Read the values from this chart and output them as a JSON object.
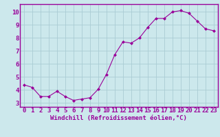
{
  "x": [
    0,
    1,
    2,
    3,
    4,
    5,
    6,
    7,
    8,
    9,
    10,
    11,
    12,
    13,
    14,
    15,
    16,
    17,
    18,
    19,
    20,
    21,
    22,
    23
  ],
  "y": [
    4.4,
    4.2,
    3.5,
    3.5,
    3.9,
    3.5,
    3.2,
    3.3,
    3.4,
    4.05,
    5.2,
    6.7,
    7.7,
    7.6,
    8.0,
    8.8,
    9.5,
    9.5,
    10.0,
    10.1,
    9.9,
    9.3,
    8.7,
    8.55
  ],
  "line_color": "#990099",
  "marker": "D",
  "marker_size": 2,
  "bg_color": "#cce8ec",
  "grid_color": "#aaccd4",
  "xlabel": "Windchill (Refroidissement éolien,°C)",
  "xlim": [
    -0.5,
    23.5
  ],
  "ylim": [
    2.7,
    10.6
  ],
  "yticks": [
    3,
    4,
    5,
    6,
    7,
    8,
    9,
    10
  ],
  "xticks": [
    0,
    1,
    2,
    3,
    4,
    5,
    6,
    7,
    8,
    9,
    10,
    11,
    12,
    13,
    14,
    15,
    16,
    17,
    18,
    19,
    20,
    21,
    22,
    23
  ],
  "xlabel_fontsize": 6.5,
  "tick_fontsize": 6.5,
  "tick_color": "#990099",
  "axis_color": "#990099",
  "spine_color": "#990099"
}
